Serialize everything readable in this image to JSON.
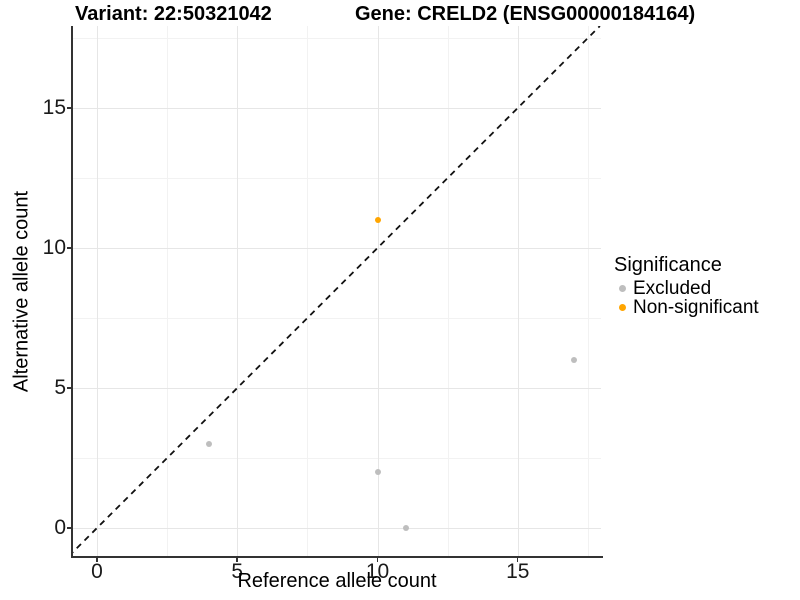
{
  "chart_data": {
    "type": "scatter",
    "titles": {
      "variant": "Variant: 22:50321042",
      "gene": "Gene: CRELD2 (ENSG00000184164)"
    },
    "xlabel": "Reference allele count",
    "ylabel": "Alternative allele count",
    "x_ticks": [
      0,
      5,
      10,
      15
    ],
    "y_ticks": [
      0,
      5,
      10,
      15
    ],
    "x_minor_gridlines": [
      2.5,
      7.5,
      12.5,
      17.5
    ],
    "y_minor_gridlines": [
      2.5,
      7.5,
      12.5,
      17.5
    ],
    "xlim": [
      -0.9,
      17.9
    ],
    "ylim": [
      -0.9,
      17.9
    ],
    "grid": true,
    "identity_line": {
      "slope": 1,
      "intercept": 0,
      "style": "dashed",
      "color": "#111111"
    },
    "series": [
      {
        "name": "Excluded",
        "color": "#BEBEBE",
        "points": [
          [
            4,
            3
          ],
          [
            10,
            2
          ],
          [
            11,
            0
          ],
          [
            17,
            6
          ]
        ]
      },
      {
        "name": "Non-significant",
        "color": "#FFA500",
        "points": [
          [
            10,
            11
          ]
        ]
      }
    ],
    "legend": {
      "title": "Significance",
      "position": "right"
    }
  }
}
